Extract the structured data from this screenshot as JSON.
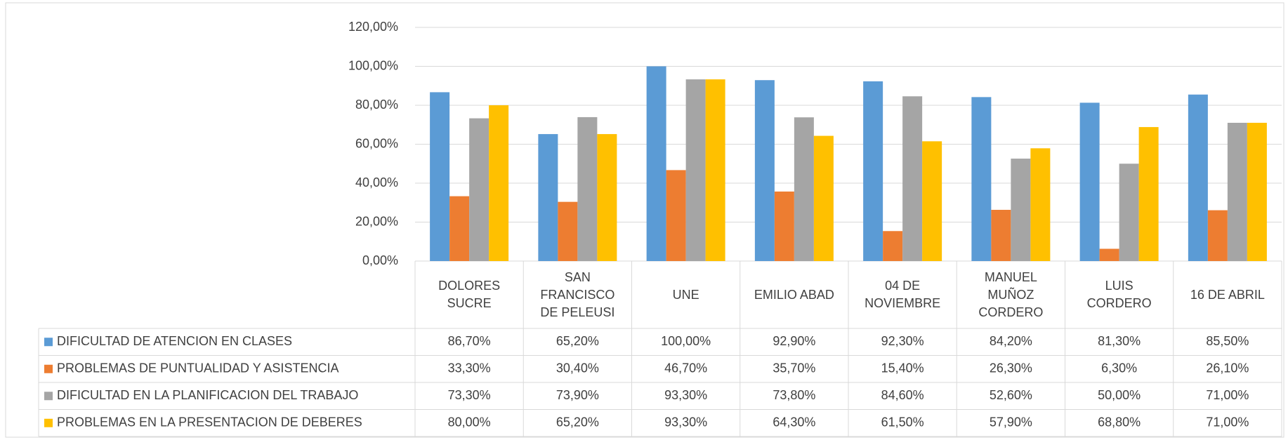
{
  "chart_data": {
    "type": "bar",
    "categories": [
      "DOLORES SUCRE",
      "SAN FRANCISCO DE PELEUSI",
      "UNE",
      "EMILIO ABAD",
      "04 DE NOVIEMBRE",
      "MANUEL MUÑOZ CORDERO",
      "LUIS CORDERO",
      "16 DE ABRIL"
    ],
    "series": [
      {
        "name": "DIFICULTAD DE ATENCION EN CLASES",
        "color": "#5b9bd5",
        "values": [
          86.7,
          65.2,
          100,
          92.9,
          92.3,
          84.2,
          81.3,
          85.5
        ],
        "value_labels": [
          "86,70%",
          "65,20%",
          "100,00%",
          "92,90%",
          "92,30%",
          "84,20%",
          "81,30%",
          "85,50%"
        ]
      },
      {
        "name": "PROBLEMAS DE PUNTUALIDAD Y ASISTENCIA",
        "color": "#ed7d31",
        "values": [
          33.3,
          30.4,
          46.7,
          35.7,
          15.4,
          26.3,
          6.3,
          26.1
        ],
        "value_labels": [
          "33,30%",
          "30,40%",
          "46,70%",
          "35,70%",
          "15,40%",
          "26,30%",
          "6,30%",
          "26,10%"
        ]
      },
      {
        "name": "DIFICULTAD EN LA PLANIFICACION DEL TRABAJO",
        "color": "#a5a5a5",
        "values": [
          73.3,
          73.9,
          93.3,
          73.8,
          84.6,
          52.6,
          50,
          71
        ],
        "value_labels": [
          "73,30%",
          "73,90%",
          "93,30%",
          "73,80%",
          "84,60%",
          "52,60%",
          "50,00%",
          "71,00%"
        ]
      },
      {
        "name": "PROBLEMAS EN LA PRESENTACION DE DEBERES",
        "color": "#ffc000",
        "values": [
          80,
          65.2,
          93.3,
          64.3,
          61.5,
          57.9,
          68.8,
          71
        ],
        "value_labels": [
          "80,00%",
          "65,20%",
          "93,30%",
          "64,30%",
          "61,50%",
          "57,90%",
          "68,80%",
          "71,00%"
        ]
      }
    ],
    "ylim": [
      0,
      120
    ],
    "yticks": [
      {
        "value": 0,
        "label": "0,00%"
      },
      {
        "value": 20,
        "label": "20,00%"
      },
      {
        "value": 40,
        "label": "40,00%"
      },
      {
        "value": 60,
        "label": "60,00%"
      },
      {
        "value": 80,
        "label": "80,00%"
      },
      {
        "value": 100,
        "label": "100,00%"
      },
      {
        "value": 120,
        "label": "120,00%"
      }
    ],
    "grid": true
  }
}
